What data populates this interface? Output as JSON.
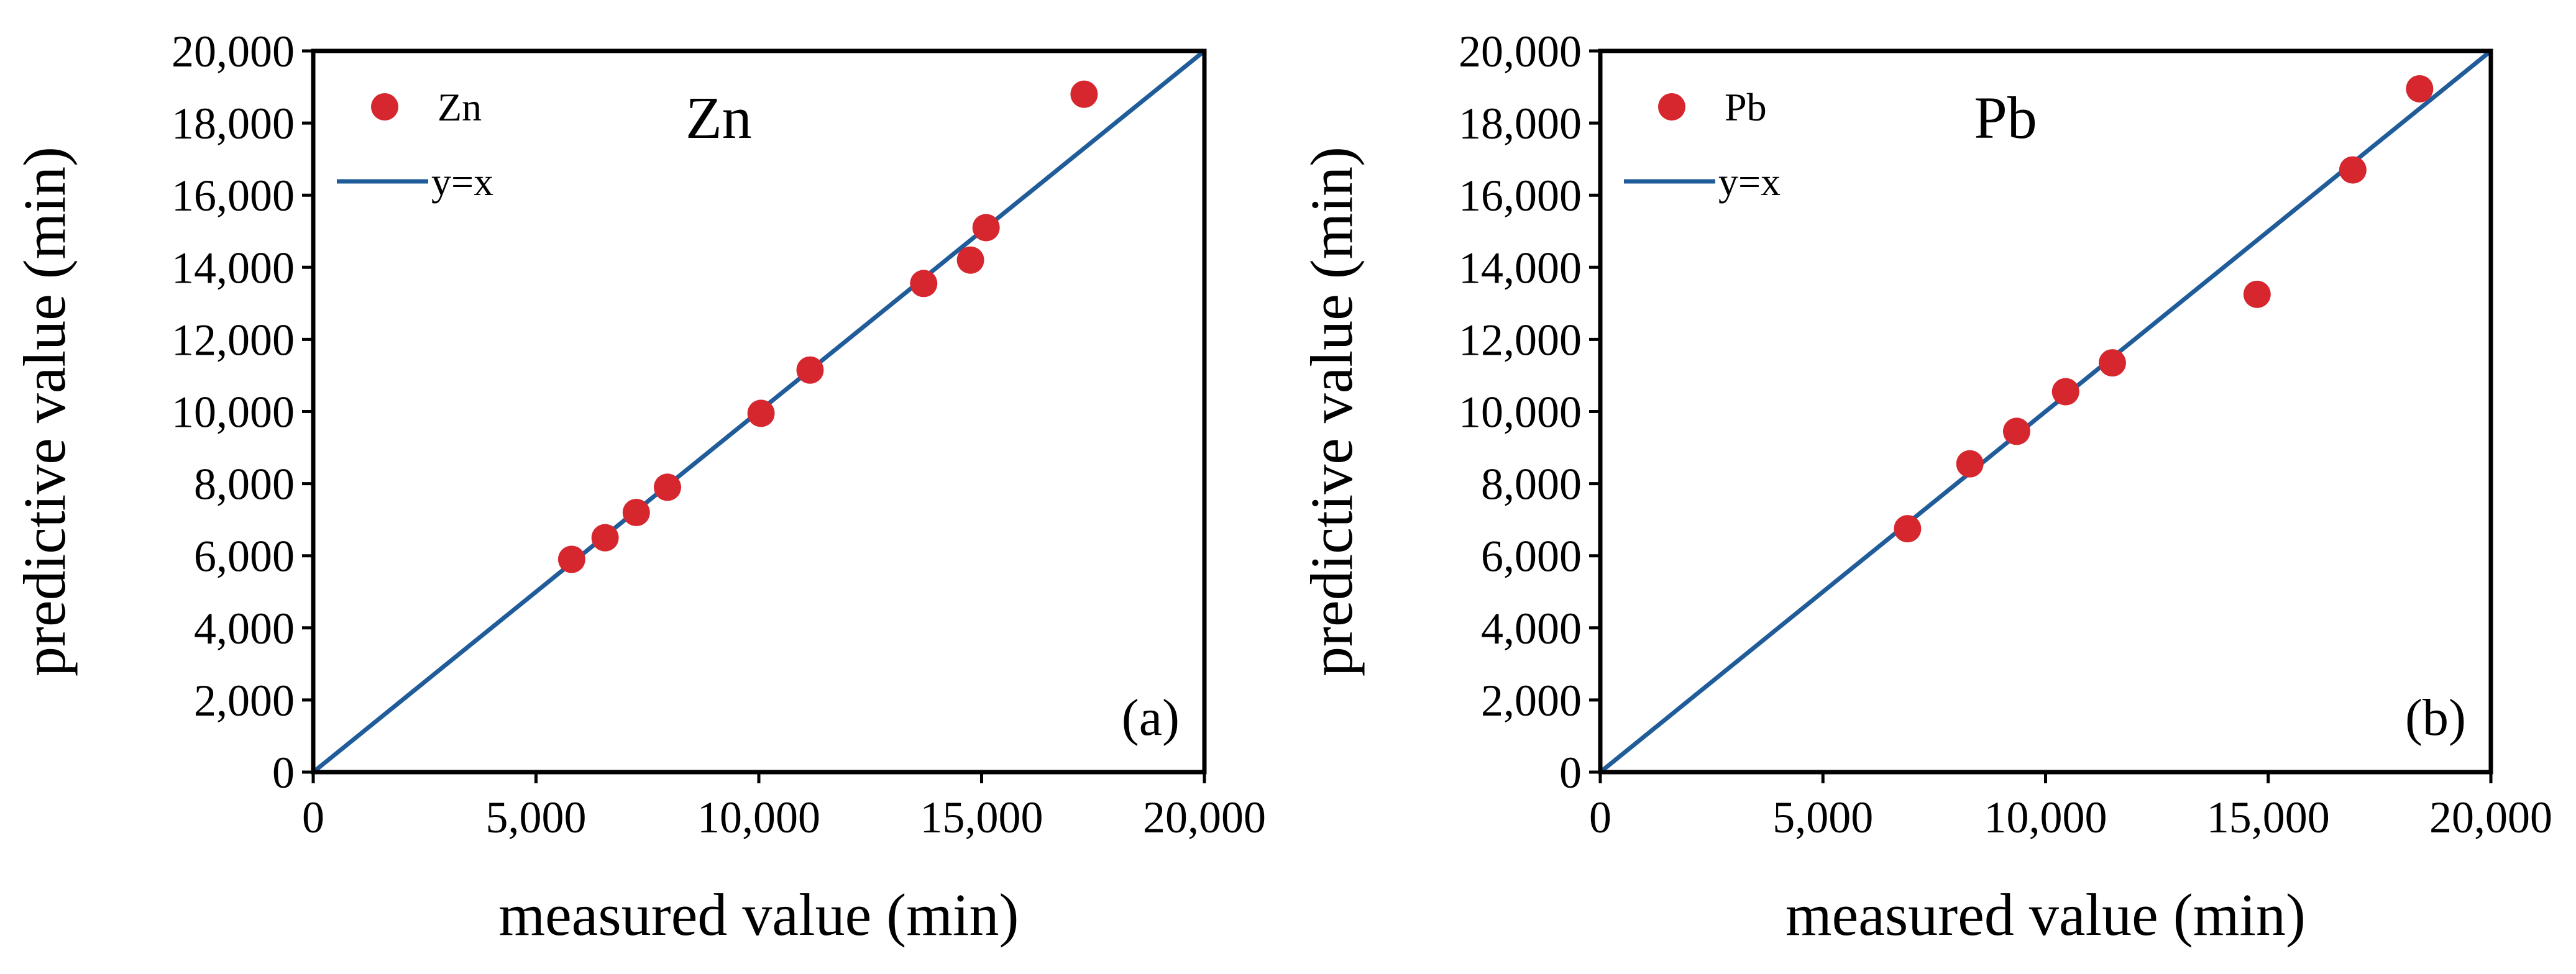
{
  "colors": {
    "marker": "#D6262E",
    "line": "#1F5C99",
    "frame": "#000000"
  },
  "chart_data": [
    {
      "type": "scatter",
      "title": "Zn",
      "panel_label": "(a)",
      "xlabel": "measured value (min)",
      "ylabel": "predictive value (min)",
      "xlim": [
        0,
        20000
      ],
      "ylim": [
        0,
        20000
      ],
      "xticks": [
        0,
        5000,
        10000,
        15000,
        20000
      ],
      "xtick_labels": [
        "0",
        "5,000",
        "10,000",
        "15,000",
        "20,000"
      ],
      "yticks": [
        0,
        2000,
        4000,
        6000,
        8000,
        10000,
        12000,
        14000,
        16000,
        18000,
        20000
      ],
      "ytick_labels": [
        "0",
        "2,000",
        "4,000",
        "6,000",
        "8,000",
        "10,000",
        "12,000",
        "14,000",
        "16,000",
        "18,000",
        "20,000"
      ],
      "legend": {
        "position": "top-left",
        "entries": [
          "Zn",
          "y=x"
        ]
      },
      "series": [
        {
          "name": "Zn",
          "kind": "points",
          "x": [
            5800,
            6550,
            7250,
            7950,
            10050,
            11150,
            13700,
            14750,
            15100,
            17300
          ],
          "y": [
            5900,
            6500,
            7200,
            7900,
            9950,
            11150,
            13550,
            14200,
            15100,
            18800
          ]
        },
        {
          "name": "y=x",
          "kind": "line",
          "x": [
            0,
            20000
          ],
          "y": [
            0,
            20000
          ]
        }
      ]
    },
    {
      "type": "scatter",
      "title": "Pb",
      "panel_label": "(b)",
      "xlabel": "measured value (min)",
      "ylabel": "predictive value (min)",
      "xlim": [
        0,
        20000
      ],
      "ylim": [
        0,
        20000
      ],
      "xticks": [
        0,
        5000,
        10000,
        15000,
        20000
      ],
      "xtick_labels": [
        "0",
        "5,000",
        "10,000",
        "15,000",
        "20,000"
      ],
      "yticks": [
        0,
        2000,
        4000,
        6000,
        8000,
        10000,
        12000,
        14000,
        16000,
        18000,
        20000
      ],
      "ytick_labels": [
        "0",
        "2,000",
        "4,000",
        "6,000",
        "8,000",
        "10,000",
        "12,000",
        "14,000",
        "16,000",
        "18,000",
        "20,000"
      ],
      "legend": {
        "position": "top-left",
        "entries": [
          "Pb",
          "y=x"
        ]
      },
      "series": [
        {
          "name": "Pb",
          "kind": "points",
          "x": [
            6900,
            8300,
            9350,
            10450,
            11500,
            14750,
            16900,
            18400
          ],
          "y": [
            6750,
            8550,
            9450,
            10550,
            11350,
            13250,
            16700,
            18950
          ]
        },
        {
          "name": "y=x",
          "kind": "line",
          "x": [
            0,
            20000
          ],
          "y": [
            0,
            20000
          ]
        }
      ]
    }
  ]
}
